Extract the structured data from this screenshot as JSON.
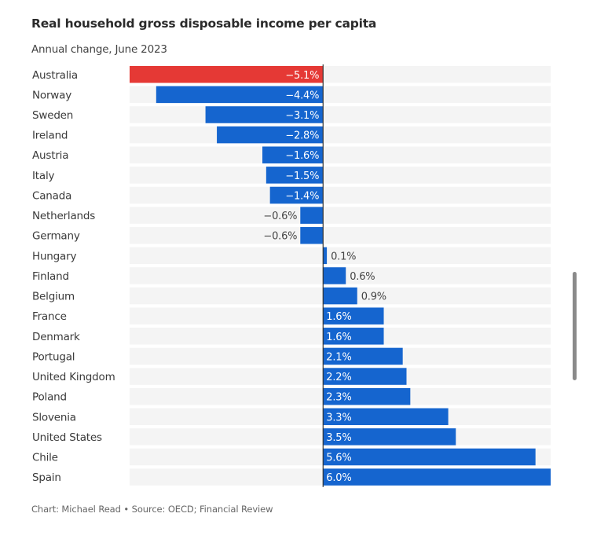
{
  "chart_data": {
    "type": "bar",
    "orientation": "horizontal",
    "title": "Real household gross disposable income per capita",
    "subtitle": "Annual change, June 2023",
    "xlabel": "",
    "ylabel": "",
    "xlim": [
      -5.1,
      6.0
    ],
    "grid": false,
    "legend": "none",
    "value_suffix": "%",
    "categories": [
      "Australia",
      "Norway",
      "Sweden",
      "Ireland",
      "Austria",
      "Italy",
      "Canada",
      "Netherlands",
      "Germany",
      "Hungary",
      "Finland",
      "Belgium",
      "France",
      "Denmark",
      "Portugal",
      "United Kingdom",
      "Poland",
      "Slovenia",
      "United States",
      "Chile",
      "Spain"
    ],
    "values": [
      -5.1,
      -4.4,
      -3.1,
      -2.8,
      -1.6,
      -1.5,
      -1.4,
      -0.6,
      -0.6,
      0.1,
      0.6,
      0.9,
      1.6,
      1.6,
      2.1,
      2.2,
      2.3,
      3.3,
      3.5,
      5.6,
      6.0
    ],
    "labels": [
      "−5.1%",
      "−4.4%",
      "−3.1%",
      "−2.8%",
      "−1.6%",
      "−1.5%",
      "−1.4%",
      "−0.6%",
      "−0.6%",
      "0.1%",
      "0.6%",
      "0.9%",
      "1.6%",
      "1.6%",
      "2.1%",
      "2.2%",
      "2.3%",
      "3.3%",
      "3.5%",
      "5.6%",
      "6.0%"
    ],
    "highlight": "Australia",
    "colors": {
      "bar": "#1565cf",
      "highlight": "#e53935",
      "row_background": "#f4f4f4",
      "axis": "#333333",
      "label_inside": "#ffffff",
      "label_outside": "#444444"
    },
    "source": "Chart: Michael Read • Source: OECD; Financial Review"
  }
}
